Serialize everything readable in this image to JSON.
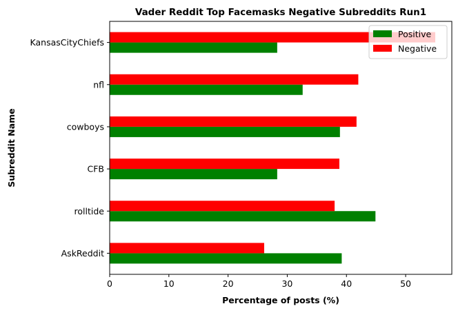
{
  "chart_data": {
    "type": "bar",
    "orientation": "horizontal",
    "title": "Vader Reddit Top Facemasks Negative Subreddits Run1",
    "xlabel": "Percentage of posts (%)",
    "ylabel": "Subreddit Name",
    "categories": [
      "AskReddit",
      "rolltide",
      "CFB",
      "cowboys",
      "nfl",
      "KansasCityChiefs"
    ],
    "series": [
      {
        "name": "Positive",
        "color": "#008000",
        "values": [
          39.2,
          44.9,
          28.3,
          38.9,
          32.6,
          28.3
        ]
      },
      {
        "name": "Negative",
        "color": "#ff0000",
        "values": [
          26.1,
          38.0,
          38.8,
          41.7,
          42.0,
          55.0
        ]
      }
    ],
    "xlim": [
      0,
      57.8
    ],
    "xticks": [
      0,
      10,
      20,
      30,
      40,
      50
    ],
    "grid": false,
    "legend_position": "top-right"
  }
}
